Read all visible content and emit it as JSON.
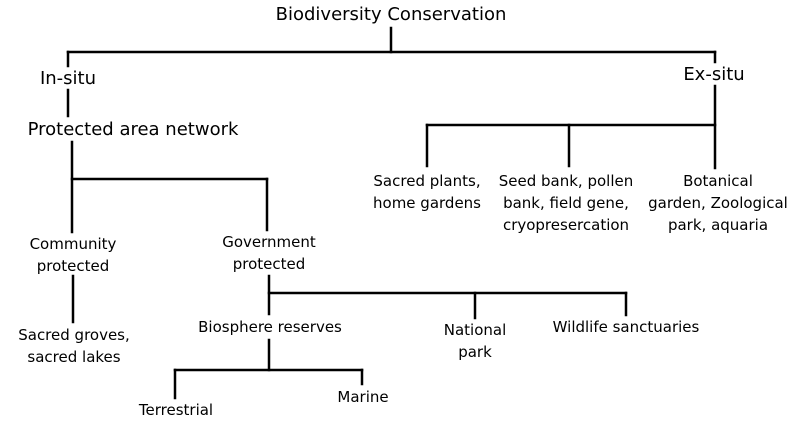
{
  "diagram": {
    "root": "Biodiversity Conservation",
    "in_situ": "In-situ",
    "ex_situ": "Ex-situ",
    "protected_area_network": "Protected area network",
    "community_protected": "Community\nprotected",
    "government_protected": "Government\nprotected",
    "sacred_groves": "Sacred groves,\nsacred lakes",
    "biosphere_reserves": "Biosphere reserves",
    "national_park": "National\npark",
    "wildlife_sanctuaries": "Wildlife sanctuaries",
    "terrestrial": "Terrestrial",
    "marine": "Marine",
    "sacred_plants": "Sacred plants,\nhome gardens",
    "seed_bank": "Seed bank, pollen\nbank, field gene,\ncryopresercation",
    "botanical_garden": "Botanical\ngarden, Zoological\npark, aquaria"
  }
}
